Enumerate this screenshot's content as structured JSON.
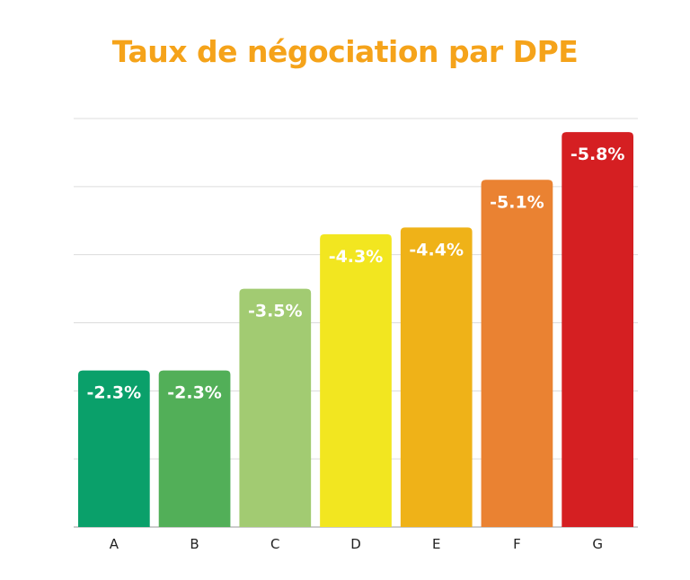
{
  "chart_data": {
    "type": "bar",
    "title": "Taux de négociation par DPE",
    "xlabel": "",
    "ylabel": "",
    "categories": [
      "A",
      "B",
      "C",
      "D",
      "E",
      "F",
      "G"
    ],
    "values": [
      -2.3,
      -2.3,
      -3.5,
      -4.3,
      -4.4,
      -5.1,
      -5.8
    ],
    "data_labels": [
      "-2.3%",
      "-2.3%",
      "-3.5%",
      "-4.3%",
      "-4.4%",
      "-5.1%",
      "-5.8%"
    ],
    "colors": [
      "#0aa06a",
      "#52af58",
      "#a2cb72",
      "#f2e620",
      "#efb218",
      "#ea8232",
      "#d51f22"
    ],
    "ylim": [
      0,
      6
    ],
    "grid": true,
    "legend": "none",
    "title_color": "#f5a31a",
    "label_color": "#ffffff"
  }
}
